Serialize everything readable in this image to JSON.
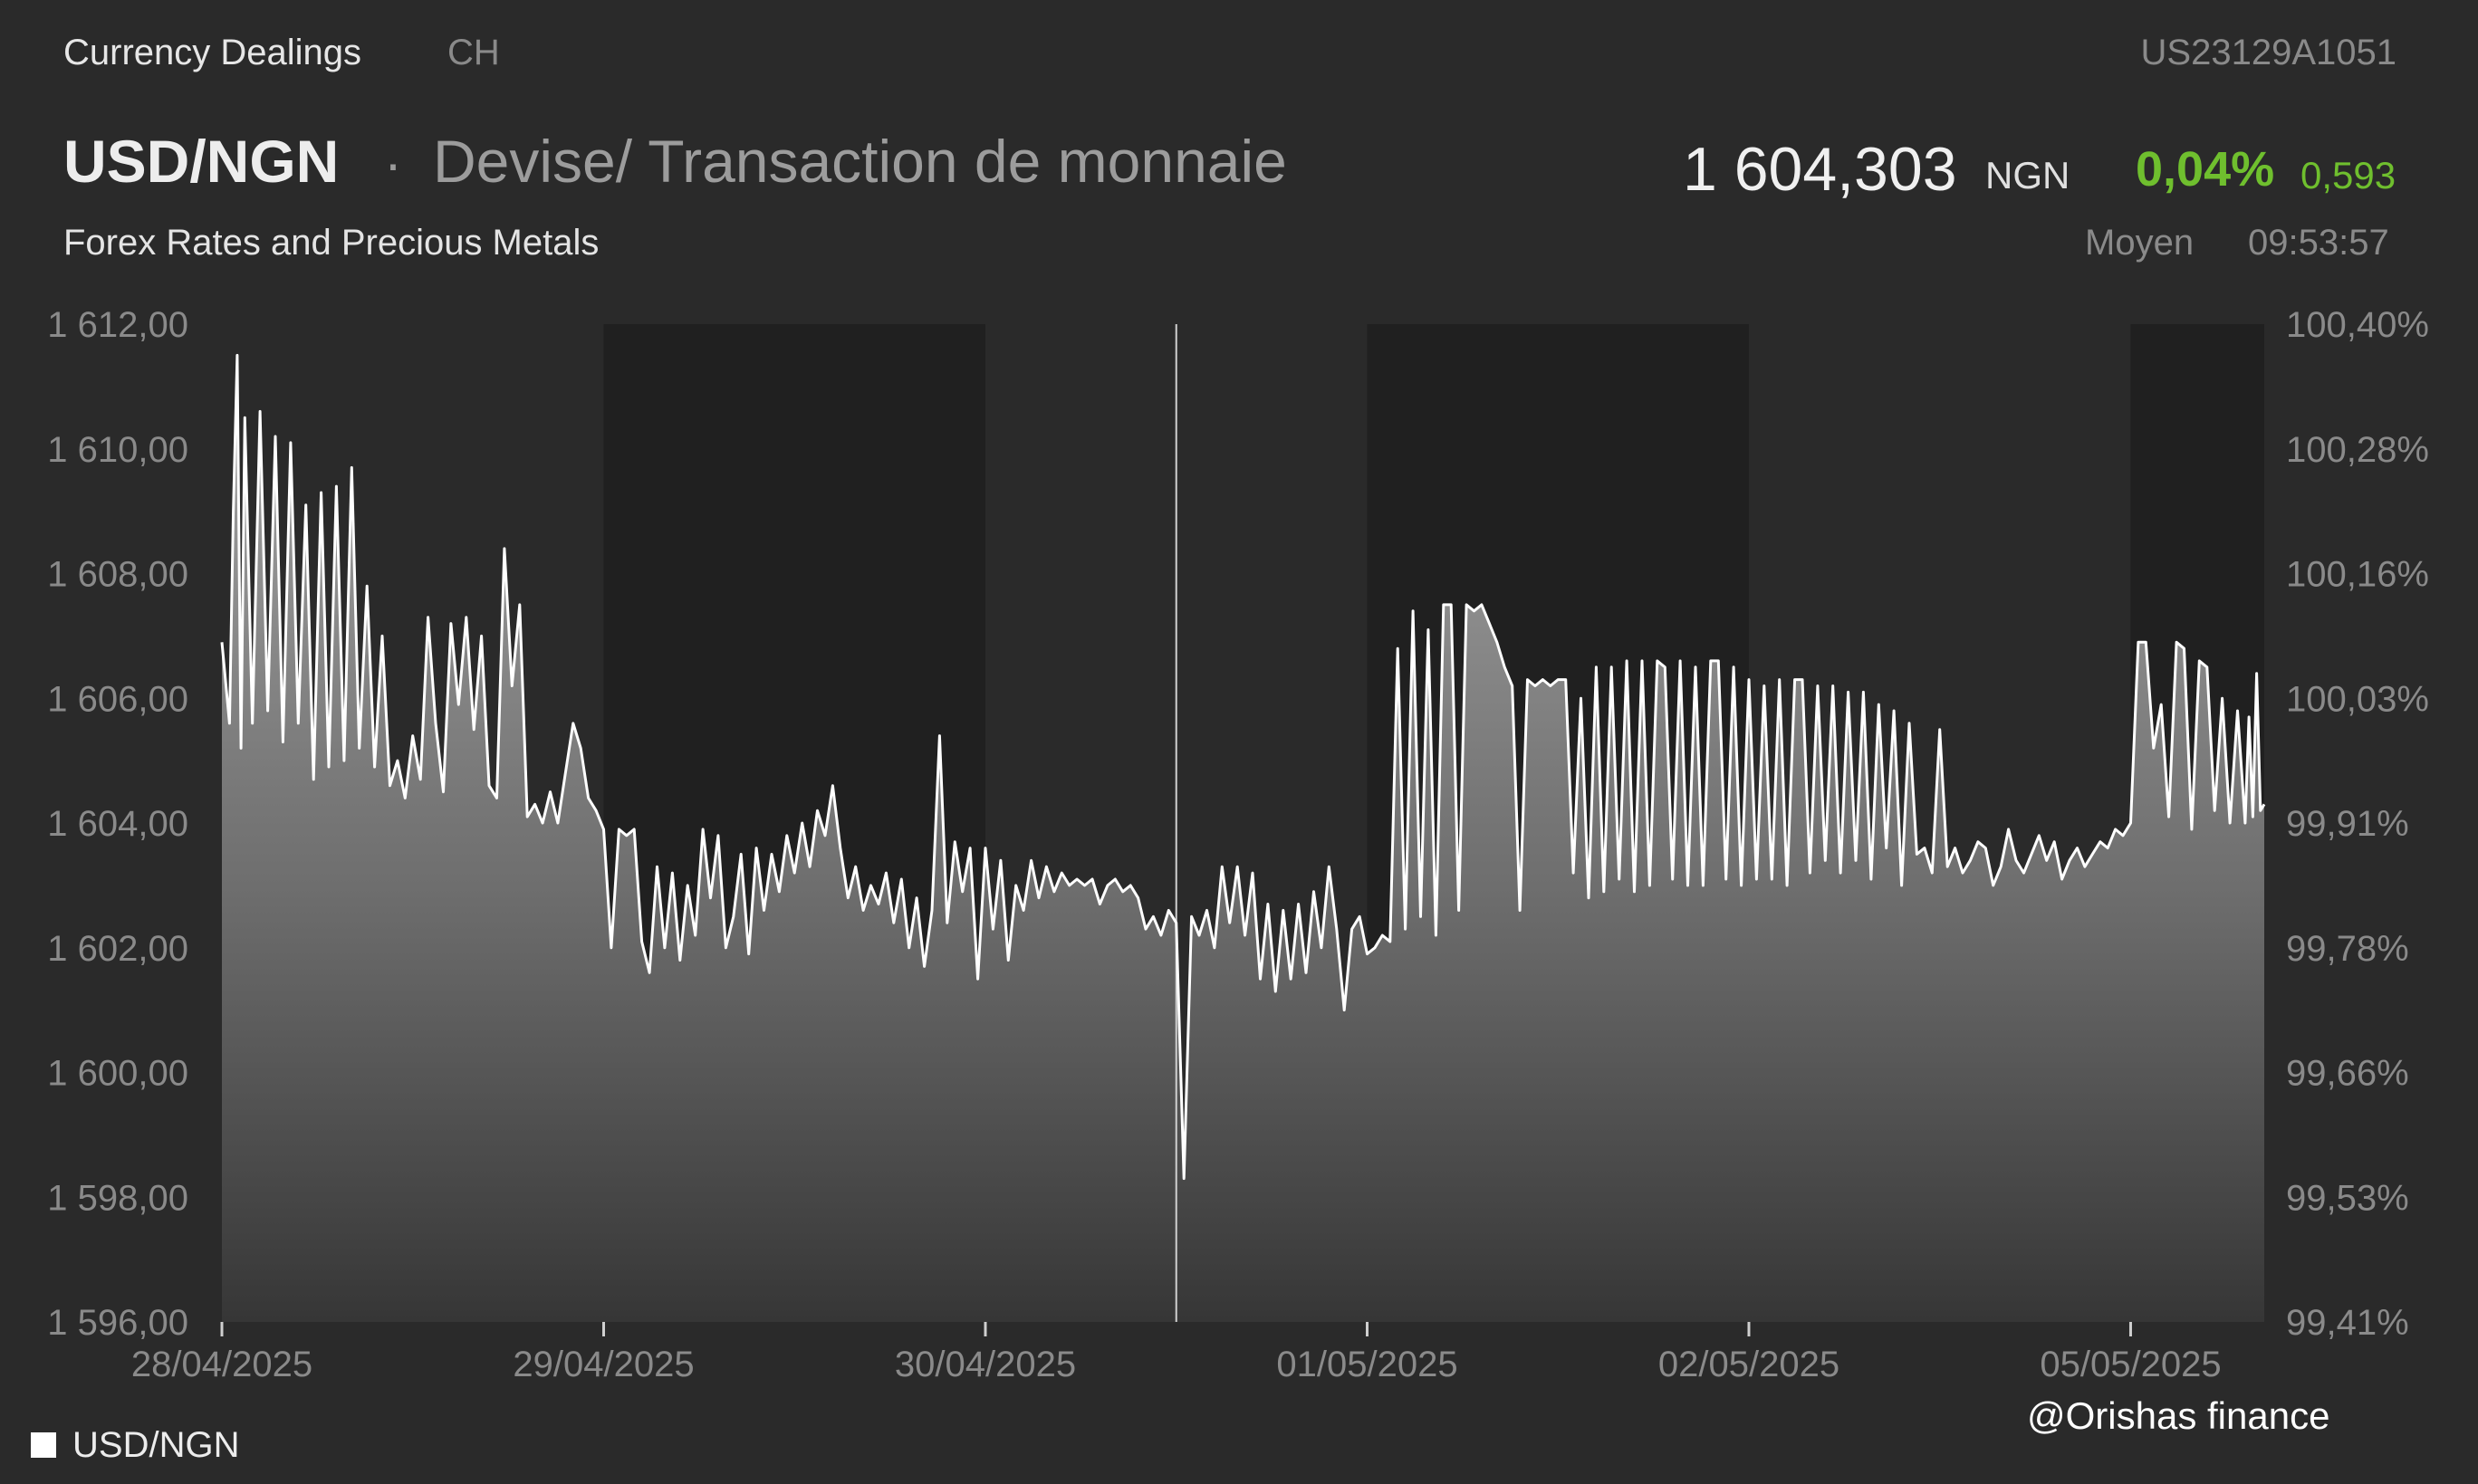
{
  "header": {
    "exchange": "Currency Dealings",
    "country": "CH",
    "isin": "US23129A1051",
    "symbol": "USD/NGN",
    "separator": "·",
    "name": "Devise/ Transaction de monnaie",
    "subtitle": "Forex Rates and Precious Metals",
    "price": "1 604,303",
    "currency": "NGN",
    "change_pct": "0,04%",
    "change_abs": "0,593",
    "price_basis": "Moyen",
    "time": "09:53:57"
  },
  "colors": {
    "background": "#2a2a2a",
    "session_band": "#202020",
    "line": "#ffffff",
    "positive": "#6fbf2e",
    "axis_text": "#8a8a8a"
  },
  "watermark": "@Orishas finance",
  "chart_data": {
    "type": "area",
    "title": "",
    "xlabel": "",
    "ylabel": "",
    "ylim": [
      1596,
      1612
    ],
    "y2lim": [
      99.41,
      100.4
    ],
    "y_ticks": [
      "1 612,00",
      "1 610,00",
      "1 608,00",
      "1 606,00",
      "1 604,00",
      "1 602,00",
      "1 600,00",
      "1 598,00",
      "1 596,00"
    ],
    "y2_ticks": [
      "100,40%",
      "100,28%",
      "100,16%",
      "100,03%",
      "99,91%",
      "99,78%",
      "99,66%",
      "99,53%",
      "99,41%"
    ],
    "x_ticks": [
      {
        "label": "28/04/2025",
        "t": 0.0
      },
      {
        "label": "29/04/2025",
        "t": 1.0
      },
      {
        "label": "30/04/2025",
        "t": 2.0
      },
      {
        "label": "01/05/2025",
        "t": 3.0
      },
      {
        "label": "02/05/2025",
        "t": 4.0
      },
      {
        "label": "05/05/2025",
        "t": 5.0
      }
    ],
    "x_max": 5.35,
    "session_bands": [
      [
        1.0,
        2.0
      ],
      [
        3.0,
        4.0
      ],
      [
        5.0,
        5.35
      ]
    ],
    "marker_line_t": 2.5,
    "legend": [
      {
        "name": "USD/NGN"
      }
    ],
    "series": [
      {
        "name": "USD/NGN",
        "points": [
          [
            0.0,
            1606.9
          ],
          [
            0.02,
            1605.6
          ],
          [
            0.03,
            1609.0
          ],
          [
            0.04,
            1611.5
          ],
          [
            0.05,
            1605.2
          ],
          [
            0.06,
            1610.5
          ],
          [
            0.08,
            1605.6
          ],
          [
            0.1,
            1610.6
          ],
          [
            0.12,
            1605.8
          ],
          [
            0.14,
            1610.2
          ],
          [
            0.16,
            1605.3
          ],
          [
            0.18,
            1610.1
          ],
          [
            0.2,
            1605.6
          ],
          [
            0.22,
            1609.1
          ],
          [
            0.24,
            1604.7
          ],
          [
            0.26,
            1609.3
          ],
          [
            0.28,
            1604.9
          ],
          [
            0.3,
            1609.4
          ],
          [
            0.32,
            1605.0
          ],
          [
            0.34,
            1609.7
          ],
          [
            0.36,
            1605.2
          ],
          [
            0.38,
            1607.8
          ],
          [
            0.4,
            1604.9
          ],
          [
            0.42,
            1607.0
          ],
          [
            0.44,
            1604.6
          ],
          [
            0.46,
            1605.0
          ],
          [
            0.48,
            1604.4
          ],
          [
            0.5,
            1605.4
          ],
          [
            0.52,
            1604.7
          ],
          [
            0.54,
            1607.3
          ],
          [
            0.56,
            1605.6
          ],
          [
            0.58,
            1604.5
          ],
          [
            0.6,
            1607.2
          ],
          [
            0.62,
            1605.9
          ],
          [
            0.64,
            1607.3
          ],
          [
            0.66,
            1605.5
          ],
          [
            0.68,
            1607.0
          ],
          [
            0.7,
            1604.6
          ],
          [
            0.72,
            1604.4
          ],
          [
            0.74,
            1608.4
          ],
          [
            0.76,
            1606.2
          ],
          [
            0.78,
            1607.5
          ],
          [
            0.8,
            1604.1
          ],
          [
            0.82,
            1604.3
          ],
          [
            0.84,
            1604.0
          ],
          [
            0.86,
            1604.5
          ],
          [
            0.88,
            1604.0
          ],
          [
            0.9,
            1604.8
          ],
          [
            0.92,
            1605.6
          ],
          [
            0.94,
            1605.2
          ],
          [
            0.96,
            1604.4
          ],
          [
            0.98,
            1604.2
          ],
          [
            1.0,
            1603.9
          ],
          [
            1.02,
            1602.0
          ],
          [
            1.04,
            1603.9
          ],
          [
            1.06,
            1603.8
          ],
          [
            1.08,
            1603.9
          ],
          [
            1.1,
            1602.1
          ],
          [
            1.12,
            1601.6
          ],
          [
            1.14,
            1603.3
          ],
          [
            1.16,
            1602.0
          ],
          [
            1.18,
            1603.2
          ],
          [
            1.2,
            1601.8
          ],
          [
            1.22,
            1603.0
          ],
          [
            1.24,
            1602.2
          ],
          [
            1.26,
            1603.9
          ],
          [
            1.28,
            1602.8
          ],
          [
            1.3,
            1603.8
          ],
          [
            1.32,
            1602.0
          ],
          [
            1.34,
            1602.5
          ],
          [
            1.36,
            1603.5
          ],
          [
            1.38,
            1601.9
          ],
          [
            1.4,
            1603.6
          ],
          [
            1.42,
            1602.6
          ],
          [
            1.44,
            1603.5
          ],
          [
            1.46,
            1602.9
          ],
          [
            1.48,
            1603.8
          ],
          [
            1.5,
            1603.2
          ],
          [
            1.52,
            1604.0
          ],
          [
            1.54,
            1603.3
          ],
          [
            1.56,
            1604.2
          ],
          [
            1.58,
            1603.8
          ],
          [
            1.6,
            1604.6
          ],
          [
            1.62,
            1603.6
          ],
          [
            1.64,
            1602.8
          ],
          [
            1.66,
            1603.3
          ],
          [
            1.68,
            1602.6
          ],
          [
            1.7,
            1603.0
          ],
          [
            1.72,
            1602.7
          ],
          [
            1.74,
            1603.2
          ],
          [
            1.76,
            1602.4
          ],
          [
            1.78,
            1603.1
          ],
          [
            1.8,
            1602.0
          ],
          [
            1.82,
            1602.8
          ],
          [
            1.84,
            1601.7
          ],
          [
            1.86,
            1602.6
          ],
          [
            1.88,
            1605.4
          ],
          [
            1.9,
            1602.4
          ],
          [
            1.92,
            1603.7
          ],
          [
            1.94,
            1602.9
          ],
          [
            1.96,
            1603.6
          ],
          [
            1.98,
            1601.5
          ],
          [
            2.0,
            1603.6
          ],
          [
            2.02,
            1602.3
          ],
          [
            2.04,
            1603.4
          ],
          [
            2.06,
            1601.8
          ],
          [
            2.08,
            1603.0
          ],
          [
            2.1,
            1602.6
          ],
          [
            2.12,
            1603.4
          ],
          [
            2.14,
            1602.8
          ],
          [
            2.16,
            1603.3
          ],
          [
            2.18,
            1602.9
          ],
          [
            2.2,
            1603.2
          ],
          [
            2.22,
            1603.0
          ],
          [
            2.24,
            1603.1
          ],
          [
            2.26,
            1603.0
          ],
          [
            2.28,
            1603.1
          ],
          [
            2.3,
            1602.7
          ],
          [
            2.32,
            1603.0
          ],
          [
            2.34,
            1603.1
          ],
          [
            2.36,
            1602.9
          ],
          [
            2.38,
            1603.0
          ],
          [
            2.4,
            1602.8
          ],
          [
            2.42,
            1602.3
          ],
          [
            2.44,
            1602.5
          ],
          [
            2.46,
            1602.2
          ],
          [
            2.48,
            1602.6
          ],
          [
            2.5,
            1602.4
          ],
          [
            2.52,
            1598.3
          ],
          [
            2.54,
            1602.5
          ],
          [
            2.56,
            1602.2
          ],
          [
            2.58,
            1602.6
          ],
          [
            2.6,
            1602.0
          ],
          [
            2.62,
            1603.3
          ],
          [
            2.64,
            1602.4
          ],
          [
            2.66,
            1603.3
          ],
          [
            2.68,
            1602.2
          ],
          [
            2.7,
            1603.2
          ],
          [
            2.72,
            1601.5
          ],
          [
            2.74,
            1602.7
          ],
          [
            2.76,
            1601.3
          ],
          [
            2.78,
            1602.6
          ],
          [
            2.8,
            1601.5
          ],
          [
            2.82,
            1602.7
          ],
          [
            2.84,
            1601.6
          ],
          [
            2.86,
            1602.9
          ],
          [
            2.88,
            1602.0
          ],
          [
            2.9,
            1603.3
          ],
          [
            2.92,
            1602.3
          ],
          [
            2.94,
            1601.0
          ],
          [
            2.96,
            1602.3
          ],
          [
            2.98,
            1602.5
          ],
          [
            3.0,
            1601.9
          ],
          [
            3.02,
            1602.0
          ],
          [
            3.04,
            1602.2
          ],
          [
            3.06,
            1602.1
          ],
          [
            3.08,
            1606.8
          ],
          [
            3.1,
            1602.3
          ],
          [
            3.12,
            1607.4
          ],
          [
            3.14,
            1602.5
          ],
          [
            3.16,
            1607.1
          ],
          [
            3.18,
            1602.2
          ],
          [
            3.2,
            1607.5
          ],
          [
            3.22,
            1607.5
          ],
          [
            3.24,
            1602.6
          ],
          [
            3.26,
            1607.5
          ],
          [
            3.28,
            1607.4
          ],
          [
            3.3,
            1607.5
          ],
          [
            3.32,
            1607.2
          ],
          [
            3.34,
            1606.9
          ],
          [
            3.36,
            1606.5
          ],
          [
            3.38,
            1606.2
          ],
          [
            3.4,
            1602.6
          ],
          [
            3.42,
            1606.3
          ],
          [
            3.44,
            1606.2
          ],
          [
            3.46,
            1606.3
          ],
          [
            3.48,
            1606.2
          ],
          [
            3.5,
            1606.3
          ],
          [
            3.52,
            1606.3
          ],
          [
            3.54,
            1603.2
          ],
          [
            3.56,
            1606.0
          ],
          [
            3.58,
            1602.8
          ],
          [
            3.6,
            1606.5
          ],
          [
            3.62,
            1602.9
          ],
          [
            3.64,
            1606.5
          ],
          [
            3.66,
            1603.1
          ],
          [
            3.68,
            1606.6
          ],
          [
            3.7,
            1602.9
          ],
          [
            3.72,
            1606.6
          ],
          [
            3.74,
            1603.0
          ],
          [
            3.76,
            1606.6
          ],
          [
            3.78,
            1606.5
          ],
          [
            3.8,
            1603.1
          ],
          [
            3.82,
            1606.6
          ],
          [
            3.84,
            1603.0
          ],
          [
            3.86,
            1606.5
          ],
          [
            3.88,
            1603.0
          ],
          [
            3.9,
            1606.6
          ],
          [
            3.92,
            1606.6
          ],
          [
            3.94,
            1603.1
          ],
          [
            3.96,
            1606.5
          ],
          [
            3.98,
            1603.0
          ],
          [
            4.0,
            1606.3
          ],
          [
            4.02,
            1603.1
          ],
          [
            4.04,
            1606.2
          ],
          [
            4.06,
            1603.1
          ],
          [
            4.08,
            1606.3
          ],
          [
            4.1,
            1603.0
          ],
          [
            4.12,
            1606.3
          ],
          [
            4.14,
            1606.3
          ],
          [
            4.16,
            1603.2
          ],
          [
            4.18,
            1606.2
          ],
          [
            4.2,
            1603.4
          ],
          [
            4.22,
            1606.2
          ],
          [
            4.24,
            1603.2
          ],
          [
            4.26,
            1606.1
          ],
          [
            4.28,
            1603.4
          ],
          [
            4.3,
            1606.1
          ],
          [
            4.32,
            1603.1
          ],
          [
            4.34,
            1605.9
          ],
          [
            4.36,
            1603.6
          ],
          [
            4.38,
            1605.8
          ],
          [
            4.4,
            1603.0
          ],
          [
            4.42,
            1605.6
          ],
          [
            4.44,
            1603.5
          ],
          [
            4.46,
            1603.6
          ],
          [
            4.48,
            1603.2
          ],
          [
            4.5,
            1605.5
          ],
          [
            4.52,
            1603.3
          ],
          [
            4.54,
            1603.6
          ],
          [
            4.56,
            1603.2
          ],
          [
            4.58,
            1603.4
          ],
          [
            4.6,
            1603.7
          ],
          [
            4.62,
            1603.6
          ],
          [
            4.64,
            1603.0
          ],
          [
            4.66,
            1603.3
          ],
          [
            4.68,
            1603.9
          ],
          [
            4.7,
            1603.4
          ],
          [
            4.72,
            1603.2
          ],
          [
            4.74,
            1603.5
          ],
          [
            4.76,
            1603.8
          ],
          [
            4.78,
            1603.4
          ],
          [
            4.8,
            1603.7
          ],
          [
            4.82,
            1603.1
          ],
          [
            4.84,
            1603.4
          ],
          [
            4.86,
            1603.6
          ],
          [
            4.88,
            1603.3
          ],
          [
            4.9,
            1603.5
          ],
          [
            4.92,
            1603.7
          ],
          [
            4.94,
            1603.6
          ],
          [
            4.96,
            1603.9
          ],
          [
            4.98,
            1603.8
          ],
          [
            5.0,
            1604.0
          ],
          [
            5.02,
            1606.9
          ],
          [
            5.04,
            1606.9
          ],
          [
            5.06,
            1605.2
          ],
          [
            5.08,
            1605.9
          ],
          [
            5.1,
            1604.1
          ],
          [
            5.12,
            1606.9
          ],
          [
            5.14,
            1606.8
          ],
          [
            5.16,
            1603.9
          ],
          [
            5.18,
            1606.6
          ],
          [
            5.2,
            1606.5
          ],
          [
            5.22,
            1604.2
          ],
          [
            5.24,
            1606.0
          ],
          [
            5.26,
            1604.0
          ],
          [
            5.28,
            1605.8
          ],
          [
            5.3,
            1604.0
          ],
          [
            5.31,
            1605.7
          ],
          [
            5.32,
            1604.1
          ],
          [
            5.33,
            1606.4
          ],
          [
            5.34,
            1604.2
          ],
          [
            5.35,
            1604.3
          ]
        ]
      }
    ]
  }
}
